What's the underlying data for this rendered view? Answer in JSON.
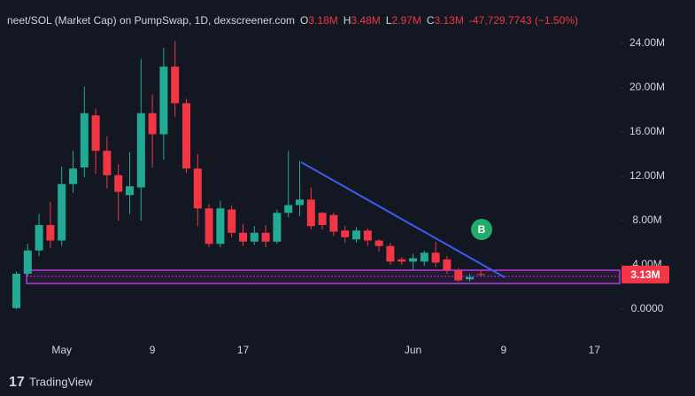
{
  "chart_data": {
    "type": "candlestick",
    "title": "neet/SOL (Market Cap) on PumpSwap, 1D, dexscreener.com",
    "ohlc_legend": [
      {
        "key": "O",
        "value": "3.18M"
      },
      {
        "key": "H",
        "value": "3.48M"
      },
      {
        "key": "L",
        "value": "2.97M"
      },
      {
        "key": "C",
        "value": "3.13M"
      }
    ],
    "change": "-47,729.7743 (−1.50%)",
    "categories": [
      null,
      null,
      null,
      null,
      "May",
      null,
      null,
      null,
      null,
      null,
      null,
      null,
      "9",
      null,
      null,
      null,
      null,
      null,
      null,
      null,
      "17",
      null,
      null,
      null,
      null,
      null,
      null,
      null,
      null,
      null,
      null,
      null,
      null,
      null,
      null,
      "Jun",
      null,
      null,
      null,
      null,
      null,
      null,
      null,
      "9",
      null,
      null,
      null,
      null,
      null,
      null,
      null,
      "17"
    ],
    "open": [
      100000,
      3200000,
      5300000,
      7600000,
      6200000,
      11300000,
      12800000,
      17500000,
      14300000,
      12100000,
      10300000,
      11000000,
      17700000,
      15800000,
      21900000,
      18600000,
      12700000,
      9100000,
      5900000,
      9000000,
      6900000,
      6100000,
      6900000,
      6100000,
      8700000,
      9400000,
      9900000,
      8700000,
      8500000,
      7100000,
      6300000,
      7100000,
      6200000,
      5700000,
      4500000,
      4300000,
      4300000,
      5100000,
      4500000,
      3500000,
      2700000,
      3180000,
      null,
      null,
      null,
      null,
      null,
      null,
      null,
      null,
      null,
      null
    ],
    "high": [
      3400000,
      5900000,
      8600000,
      9700000,
      12900000,
      14300000,
      20100000,
      18100000,
      15600000,
      13100000,
      14200000,
      22600000,
      19400000,
      23600000,
      24200000,
      19000000,
      14000000,
      9500000,
      9800000,
      9400000,
      7700000,
      7500000,
      7600000,
      9000000,
      14300000,
      13400000,
      11000000,
      8800000,
      8700000,
      7500000,
      7400000,
      7300000,
      6300000,
      6000000,
      4700000,
      5000000,
      5300000,
      6100000,
      4800000,
      3700000,
      3200000,
      3480000,
      null,
      null,
      null,
      null,
      null,
      null,
      null,
      null,
      null,
      null
    ],
    "low": [
      0,
      3000000,
      4800000,
      5500000,
      5700000,
      10500000,
      11900000,
      12200000,
      10900000,
      8000000,
      8600000,
      8000000,
      12800000,
      13500000,
      17400000,
      12300000,
      7500000,
      5600000,
      5600000,
      6500000,
      5700000,
      5800000,
      5600000,
      5900000,
      8300000,
      8400000,
      7200000,
      7200000,
      6600000,
      6000000,
      6000000,
      5700000,
      5200000,
      4000000,
      4000000,
      3500000,
      3900000,
      3800000,
      3200000,
      2500000,
      2500000,
      2970000,
      null,
      null,
      null,
      null,
      null,
      null,
      null,
      null,
      null,
      null
    ],
    "close": [
      3200000,
      5300000,
      7600000,
      6200000,
      11300000,
      12700000,
      17700000,
      14300000,
      12100000,
      10600000,
      11100000,
      17700000,
      15800000,
      21900000,
      18600000,
      12700000,
      9100000,
      5900000,
      9100000,
      6900000,
      6100000,
      6900000,
      6100000,
      8700000,
      9400000,
      9900000,
      7500000,
      7600000,
      7000000,
      6500000,
      7100000,
      6200000,
      5700000,
      4300000,
      4300000,
      4600000,
      5100000,
      4200000,
      3500000,
      2600000,
      2900000,
      3130000,
      null,
      null,
      null,
      null,
      null,
      null,
      null,
      null,
      null,
      null
    ],
    "up_color": "#22ab94",
    "down_color": "#f23645",
    "ylim": [
      -2880000,
      27920000
    ],
    "yticks": [
      {
        "value": 0,
        "label": "0.0000"
      },
      {
        "value": 4000000,
        "label": "4.00M"
      },
      {
        "value": 8000000,
        "label": "8.00M"
      },
      {
        "value": 12000000,
        "label": "12.00M"
      },
      {
        "value": 16000000,
        "label": "16.00M"
      },
      {
        "value": 20000000,
        "label": "20.00M"
      },
      {
        "value": 24000000,
        "label": "24.00M"
      }
    ],
    "grid": false,
    "price_label": {
      "value": 3130000,
      "label": "3.13M"
    },
    "marker": "B",
    "brand": "TradingView"
  }
}
